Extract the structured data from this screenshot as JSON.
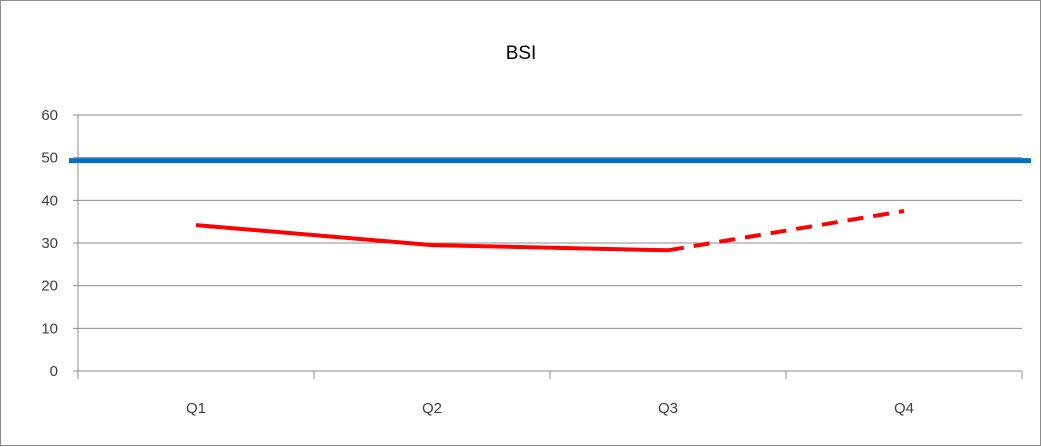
{
  "chart_data": {
    "type": "line",
    "title": "BSI",
    "xlabel": "",
    "ylabel": "",
    "categories": [
      "Q1",
      "Q2",
      "Q3",
      "Q4"
    ],
    "ylim": [
      0,
      60
    ],
    "yticks": [
      0,
      10,
      20,
      30,
      40,
      50,
      60
    ],
    "grid": true,
    "legend": "none",
    "series": [
      {
        "values": [
          49.3,
          49.3,
          49.3,
          49.3
        ],
        "color": "#0070C0",
        "style": "solid",
        "extends_full_width": true
      },
      {
        "values": [
          34.2,
          29.5,
          28.3,
          null
        ],
        "color": "#FF0000",
        "style": "solid"
      },
      {
        "values": [
          null,
          null,
          28.3,
          37.5
        ],
        "color": "#FF0000",
        "style": "dashed"
      }
    ]
  }
}
